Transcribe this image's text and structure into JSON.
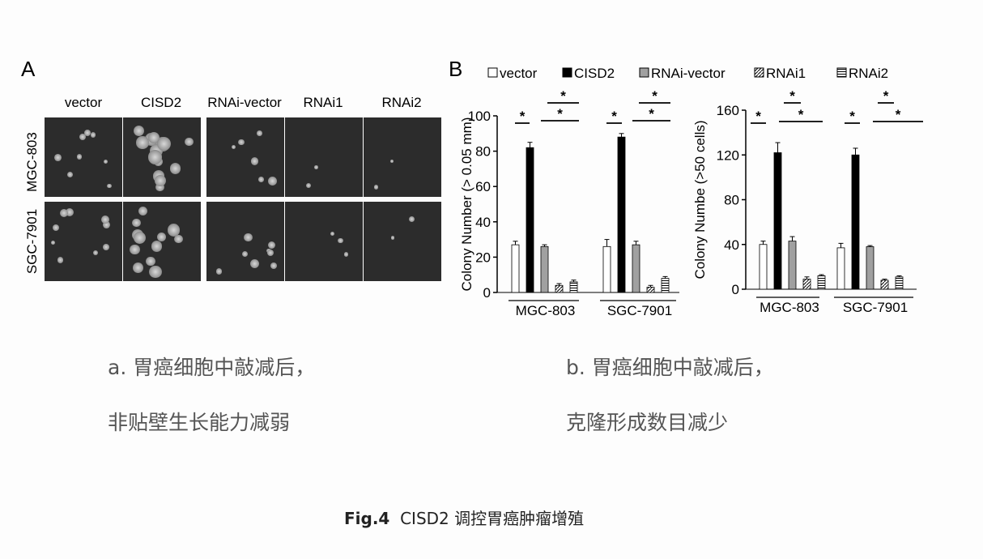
{
  "panel_a": {
    "letter": "A",
    "columns": [
      "vector",
      "CISD2",
      "RNAi-vector",
      "RNAi1",
      "RNAi2"
    ],
    "rows": [
      "MGC-803",
      "SGC-7901"
    ]
  },
  "panel_b": {
    "letter": "B",
    "legend": [
      "vector",
      "CISD2",
      "RNAi-vector",
      "RNAi1",
      "RNAi2"
    ]
  },
  "chart_data": [
    {
      "type": "bar",
      "ylabel": "Colony Number (> 0.05 mm)",
      "ylim": [
        0,
        100
      ],
      "yticks": [
        0,
        20,
        40,
        60,
        80,
        100
      ],
      "categories": [
        "MGC-803",
        "SGC-7901"
      ],
      "series": [
        {
          "name": "vector",
          "values": [
            27,
            26
          ],
          "errors": [
            2,
            4
          ]
        },
        {
          "name": "CISD2",
          "values": [
            82,
            88
          ],
          "errors": [
            3,
            2
          ]
        },
        {
          "name": "RNAi-vector",
          "values": [
            26,
            27
          ],
          "errors": [
            1,
            2
          ]
        },
        {
          "name": "RNAi1",
          "values": [
            4,
            3
          ],
          "errors": [
            1,
            1
          ]
        },
        {
          "name": "RNAi2",
          "values": [
            6,
            8
          ],
          "errors": [
            1,
            1
          ]
        }
      ],
      "significance": [
        "*",
        "*",
        "*",
        "*",
        "*",
        "*"
      ]
    },
    {
      "type": "bar",
      "ylabel": "Colony Numbe (>50 cells)",
      "ylim": [
        0,
        160
      ],
      "yticks": [
        0,
        40,
        80,
        120,
        160
      ],
      "categories": [
        "MGC-803",
        "SGC-7901"
      ],
      "series": [
        {
          "name": "vector",
          "values": [
            40,
            37
          ],
          "errors": [
            3,
            4
          ]
        },
        {
          "name": "CISD2",
          "values": [
            122,
            120
          ],
          "errors": [
            9,
            6
          ]
        },
        {
          "name": "RNAi-vector",
          "values": [
            43,
            38
          ],
          "errors": [
            4,
            1
          ]
        },
        {
          "name": "RNAi1",
          "values": [
            9,
            8
          ],
          "errors": [
            2,
            1
          ]
        },
        {
          "name": "RNAi2",
          "values": [
            12,
            11
          ],
          "errors": [
            1,
            1
          ]
        }
      ],
      "significance": [
        "*",
        "*",
        "*",
        "*",
        "*",
        "*"
      ]
    }
  ],
  "captions": {
    "a_line1": "a. 胃癌细胞中敲减后，",
    "a_line2": "非贴壁生长能力减弱",
    "b_line1": "b. 胃癌细胞中敲减后，",
    "b_line2": "克隆形成数目减少"
  },
  "figure_title": {
    "label": "Fig.4",
    "text": "CISD2 调控胃癌肿瘤增殖"
  }
}
